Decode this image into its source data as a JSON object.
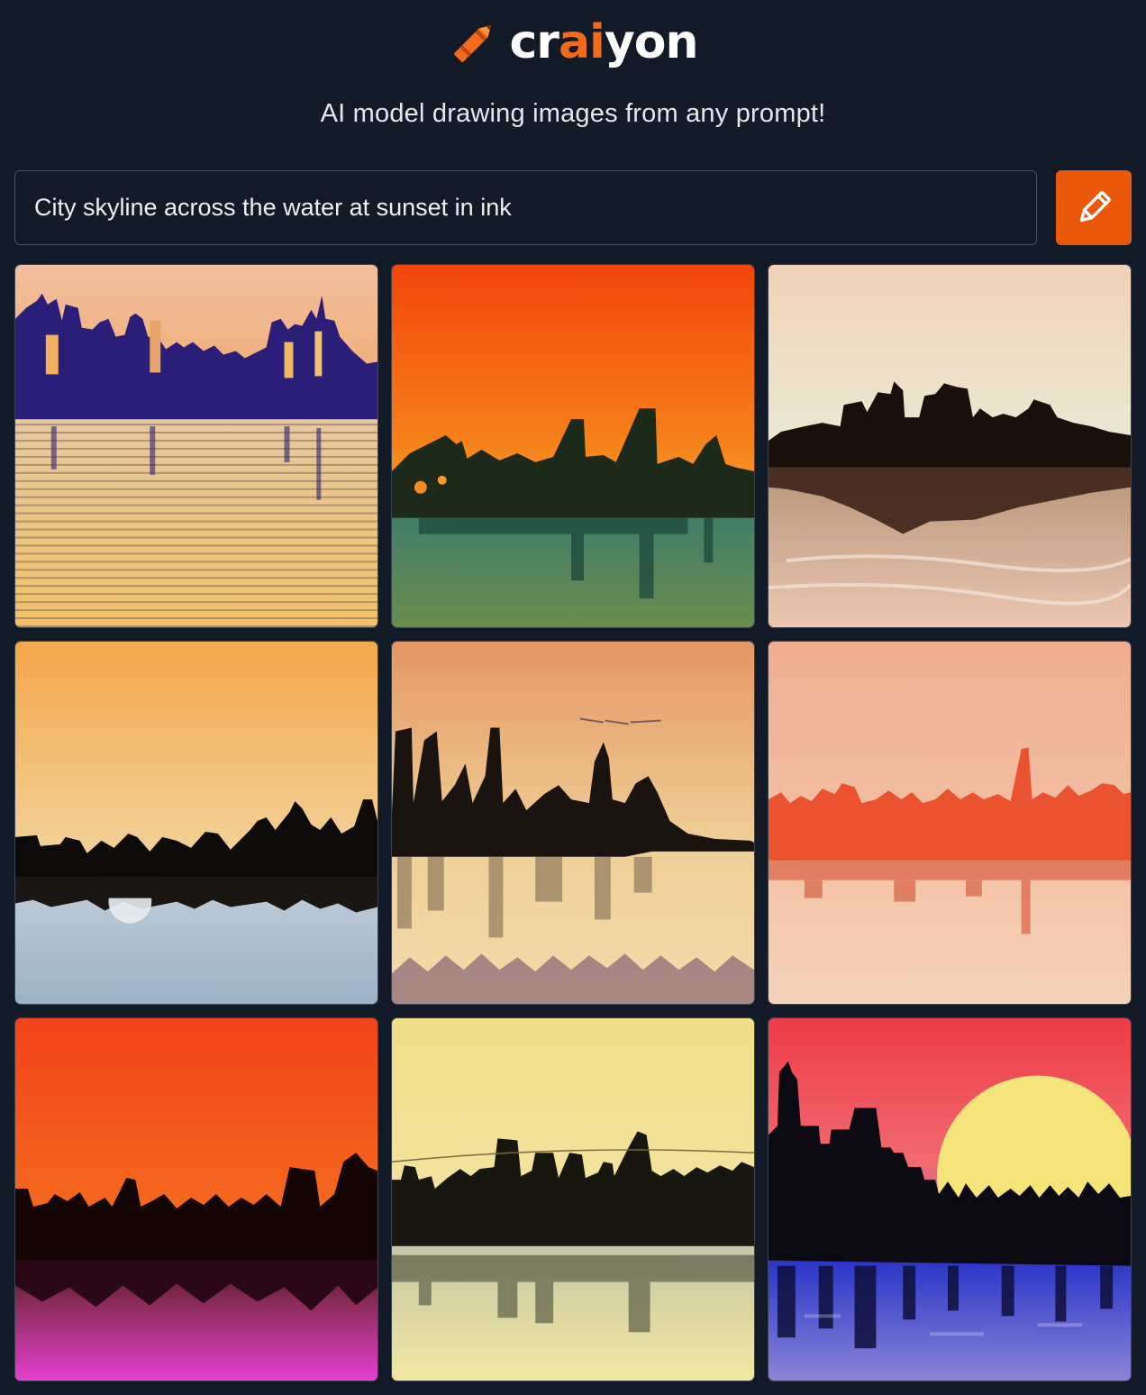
{
  "brand": {
    "name_prefix": "cr",
    "name_highlight": "ai",
    "name_suffix": "yon",
    "logo_icon": "crayon-icon",
    "accent_color": "#f26a1c"
  },
  "header": {
    "tagline": "AI model drawing images from any prompt!"
  },
  "search": {
    "value": "City skyline across the water at sunset in ink",
    "button_icon": "pencil-icon",
    "button_color": "#ea580c"
  },
  "results": {
    "count": 9,
    "images": [
      {
        "index": 1,
        "theme": "purple skyline over golden striped water"
      },
      {
        "index": 2,
        "theme": "orange sky with green reflection"
      },
      {
        "index": 3,
        "theme": "cream sky with brown reflection"
      },
      {
        "index": 4,
        "theme": "amber sky with blue water"
      },
      {
        "index": 5,
        "theme": "peach sky with misty reflection"
      },
      {
        "index": 6,
        "theme": "red skyline on peach water"
      },
      {
        "index": 7,
        "theme": "red sky fading to magenta water"
      },
      {
        "index": 8,
        "theme": "yellow sky with grey reflection"
      },
      {
        "index": 9,
        "theme": "large yellow sun with blue water"
      }
    ]
  }
}
